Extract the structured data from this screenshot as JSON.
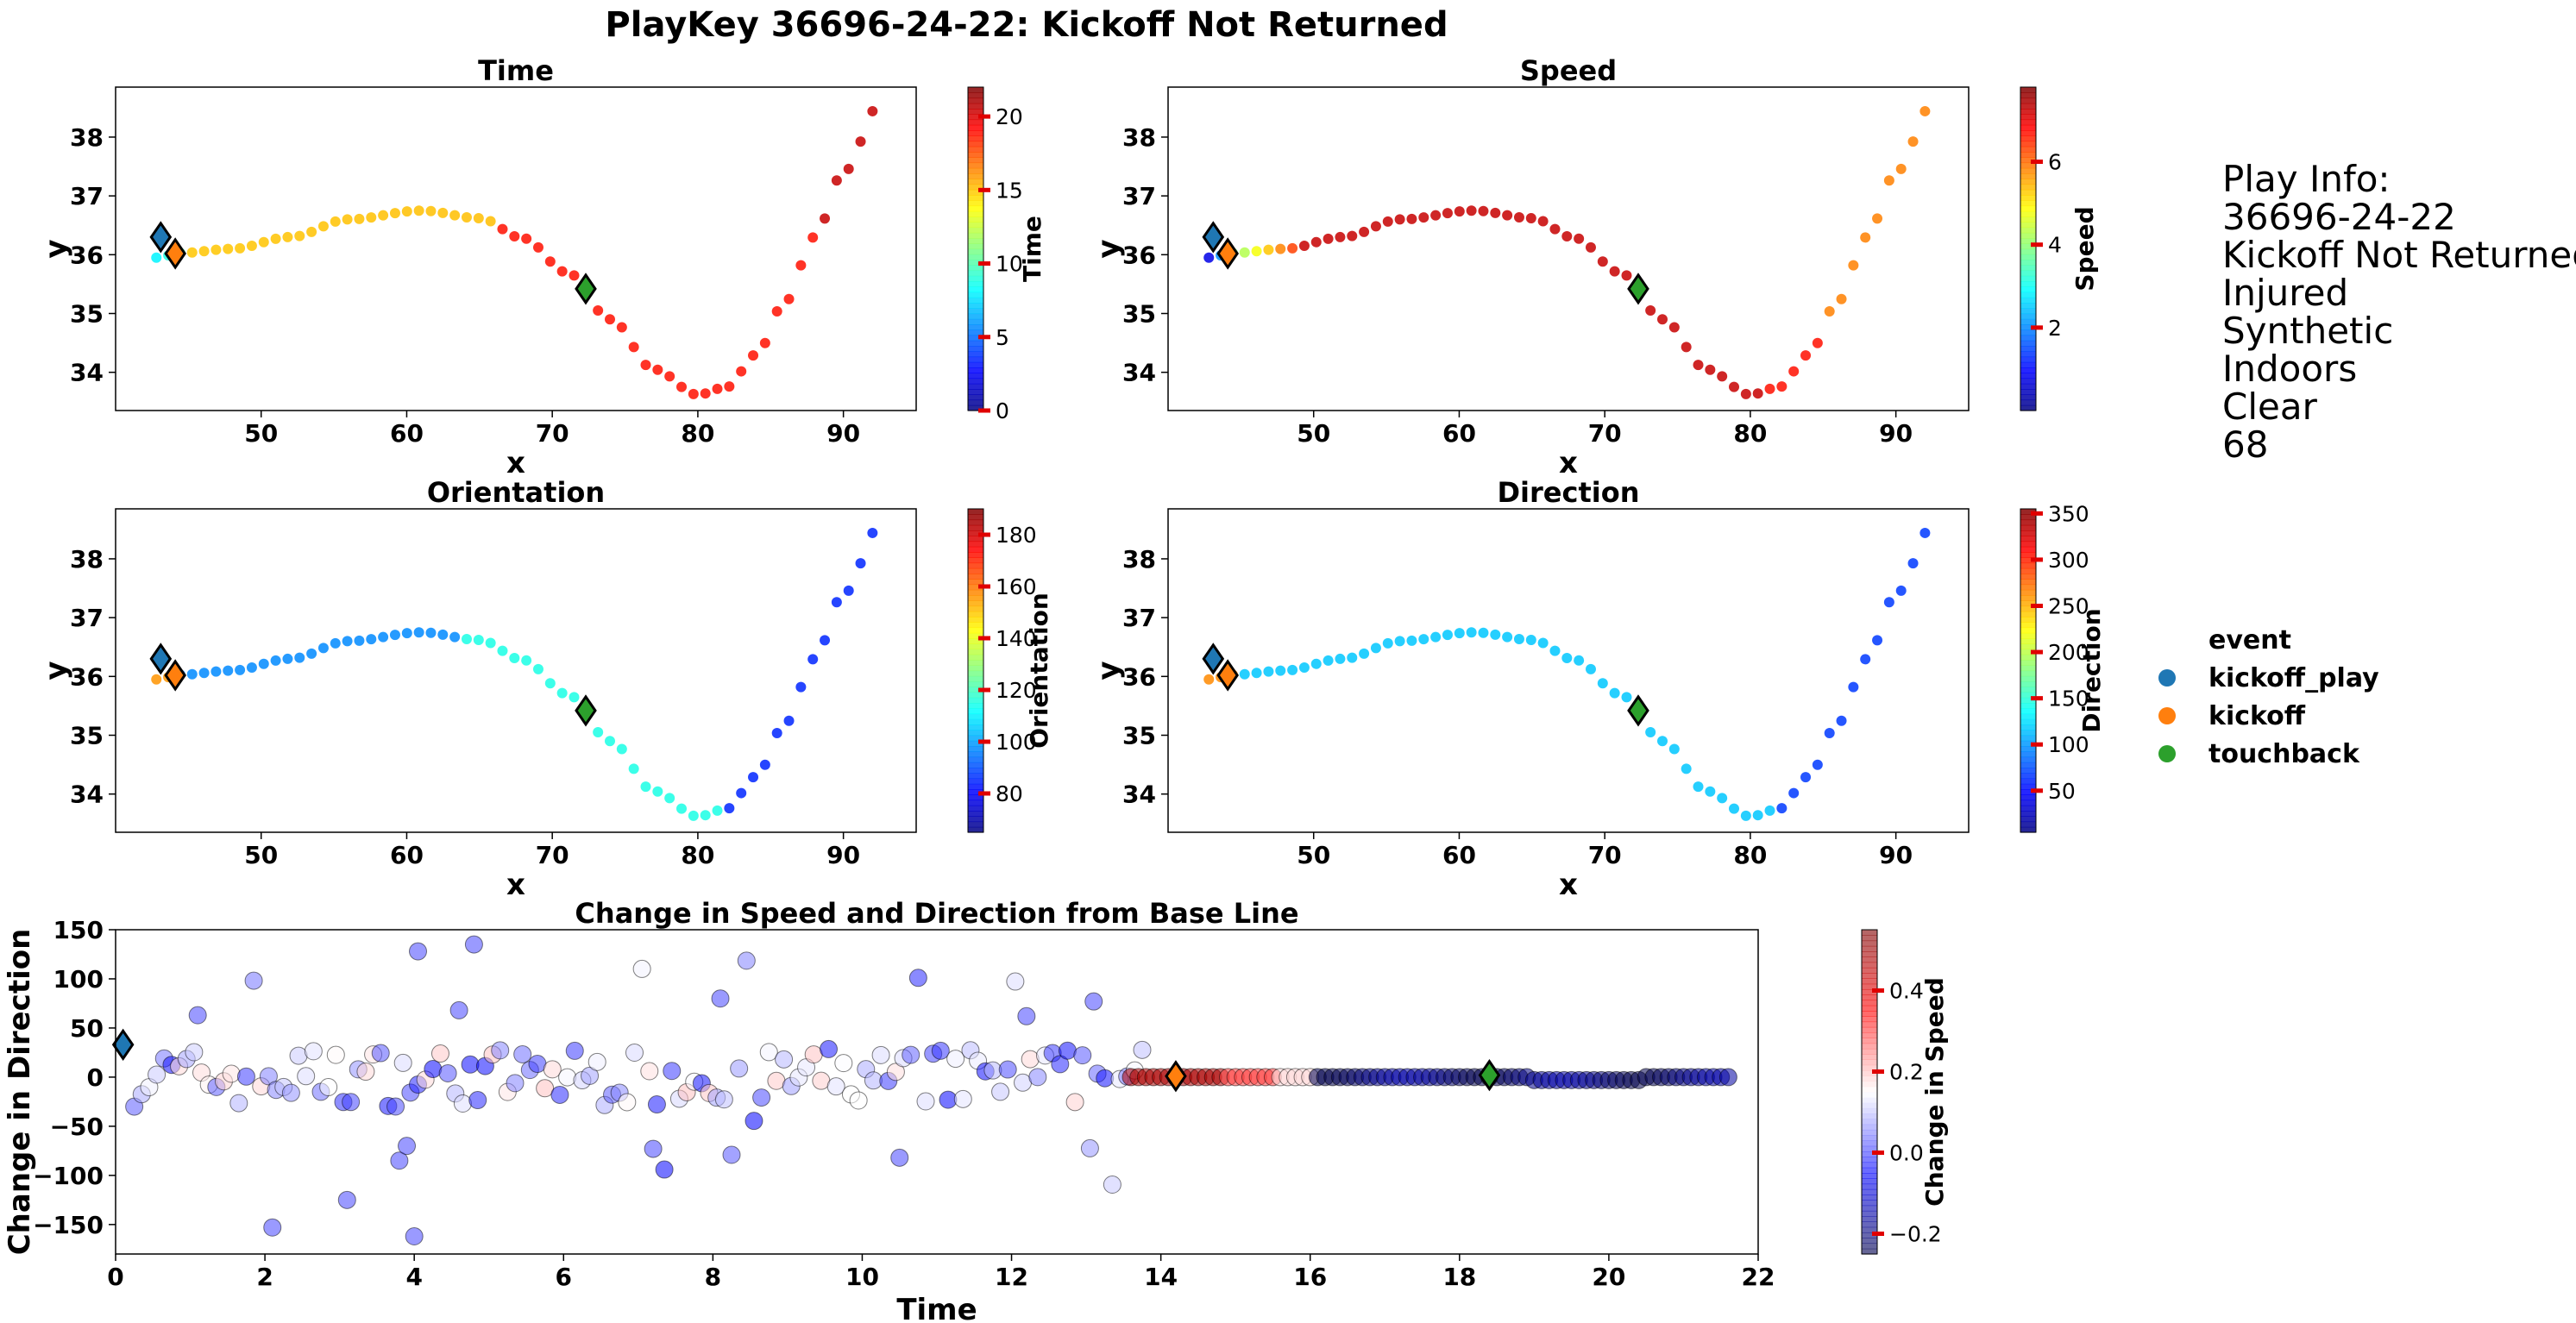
{
  "figure_title": "PlayKey 36696-24-22: Kickoff Not Returned",
  "play_info": {
    "header": "Play Info:",
    "lines": [
      "36696-24-22",
      "Kickoff Not Returned",
      "Injured",
      "Synthetic",
      "Indoors",
      "Clear",
      "68"
    ]
  },
  "legend": {
    "title": "event",
    "items": [
      {
        "label": "kickoff_play",
        "color": "#1f77b4"
      },
      {
        "label": "kickoff",
        "color": "#ff7f0e"
      },
      {
        "label": "touchback",
        "color": "#2ca02c"
      }
    ]
  },
  "chart_data": [
    {
      "type": "scatter",
      "title": "Time",
      "xlabel": "x",
      "ylabel": "y",
      "xlim": [
        40,
        95
      ],
      "ylim": [
        33.35,
        38.85
      ],
      "xticks": [
        50,
        60,
        70,
        80,
        90
      ],
      "yticks": [
        34,
        35,
        36,
        37,
        38
      ],
      "colorbar": {
        "label": "Time",
        "range": [
          0,
          22
        ],
        "ticks": [
          0,
          5,
          10,
          15,
          20
        ],
        "cmap": "jet"
      },
      "color_by": "time",
      "events": [
        {
          "event": "kickoff_play",
          "x": 43.1,
          "y": 36.3,
          "color": "#1f77b4"
        },
        {
          "event": "kickoff",
          "x": 44.1,
          "y": 36.02,
          "color": "#ff7f0e"
        },
        {
          "event": "touchback",
          "x": 72.3,
          "y": 35.42,
          "color": "#2ca02c"
        }
      ]
    },
    {
      "type": "scatter",
      "title": "Speed",
      "xlabel": "x",
      "ylabel": "y",
      "xlim": [
        40,
        95
      ],
      "ylim": [
        33.35,
        38.85
      ],
      "xticks": [
        50,
        60,
        70,
        80,
        90
      ],
      "yticks": [
        34,
        35,
        36,
        37,
        38
      ],
      "colorbar": {
        "label": "Speed",
        "range": [
          0,
          7.8
        ],
        "ticks": [
          2,
          4,
          6
        ],
        "cmap": "jet"
      },
      "color_by": "speed",
      "events": [
        {
          "event": "kickoff_play",
          "x": 43.1,
          "y": 36.3,
          "color": "#1f77b4"
        },
        {
          "event": "kickoff",
          "x": 44.1,
          "y": 36.02,
          "color": "#ff7f0e"
        },
        {
          "event": "touchback",
          "x": 72.3,
          "y": 35.42,
          "color": "#2ca02c"
        }
      ]
    },
    {
      "type": "scatter",
      "title": "Orientation",
      "xlabel": "x",
      "ylabel": "y",
      "xlim": [
        40,
        95
      ],
      "ylim": [
        33.35,
        38.85
      ],
      "xticks": [
        50,
        60,
        70,
        80,
        90
      ],
      "yticks": [
        34,
        35,
        36,
        37,
        38
      ],
      "colorbar": {
        "label": "Orientation",
        "range": [
          65,
          190
        ],
        "ticks": [
          80,
          100,
          120,
          140,
          160,
          180
        ],
        "cmap": "jet"
      },
      "color_by": "orientation",
      "events": [
        {
          "event": "kickoff_play",
          "x": 43.1,
          "y": 36.3,
          "color": "#1f77b4"
        },
        {
          "event": "kickoff",
          "x": 44.1,
          "y": 36.02,
          "color": "#ff7f0e"
        },
        {
          "event": "touchback",
          "x": 72.3,
          "y": 35.42,
          "color": "#2ca02c"
        }
      ]
    },
    {
      "type": "scatter",
      "title": "Direction",
      "xlabel": "x",
      "ylabel": "y",
      "xlim": [
        40,
        95
      ],
      "ylim": [
        33.35,
        38.85
      ],
      "xticks": [
        50,
        60,
        70,
        80,
        90
      ],
      "yticks": [
        34,
        35,
        36,
        37,
        38
      ],
      "colorbar": {
        "label": "Direction",
        "range": [
          5,
          355
        ],
        "ticks": [
          50,
          100,
          150,
          200,
          250,
          300,
          350
        ],
        "cmap": "jet"
      },
      "color_by": "direction",
      "events": [
        {
          "event": "kickoff_play",
          "x": 43.1,
          "y": 36.3,
          "color": "#1f77b4"
        },
        {
          "event": "kickoff",
          "x": 44.1,
          "y": 36.02,
          "color": "#ff7f0e"
        },
        {
          "event": "touchback",
          "x": 72.3,
          "y": 35.42,
          "color": "#2ca02c"
        }
      ]
    },
    {
      "type": "scatter",
      "title": "Change in Speed and Direction from Base Line",
      "xlabel": "Time",
      "ylabel": "Change in Direction",
      "xlim": [
        0,
        22
      ],
      "ylim": [
        -180,
        150
      ],
      "xticks": [
        0,
        2,
        4,
        6,
        8,
        10,
        12,
        14,
        16,
        18,
        20,
        22
      ],
      "yticks": [
        -150,
        -100,
        -50,
        0,
        50,
        100,
        150
      ],
      "colorbar": {
        "label": "Change in Speed",
        "range": [
          -0.25,
          0.55
        ],
        "ticks": [
          -0.2,
          0.0,
          0.2,
          0.4
        ],
        "tick_labels": [
          "−0.2",
          "0.0",
          "0.2",
          "0.4"
        ],
        "cmap": "seismic"
      },
      "events": [
        {
          "event": "kickoff_play",
          "x": 0.1,
          "y": 33,
          "color": "#1f77b4"
        },
        {
          "event": "kickoff",
          "x": 14.2,
          "y": 1,
          "color": "#ff7f0e"
        },
        {
          "event": "touchback",
          "x": 18.4,
          "y": 2,
          "color": "#2ca02c"
        }
      ]
    }
  ]
}
